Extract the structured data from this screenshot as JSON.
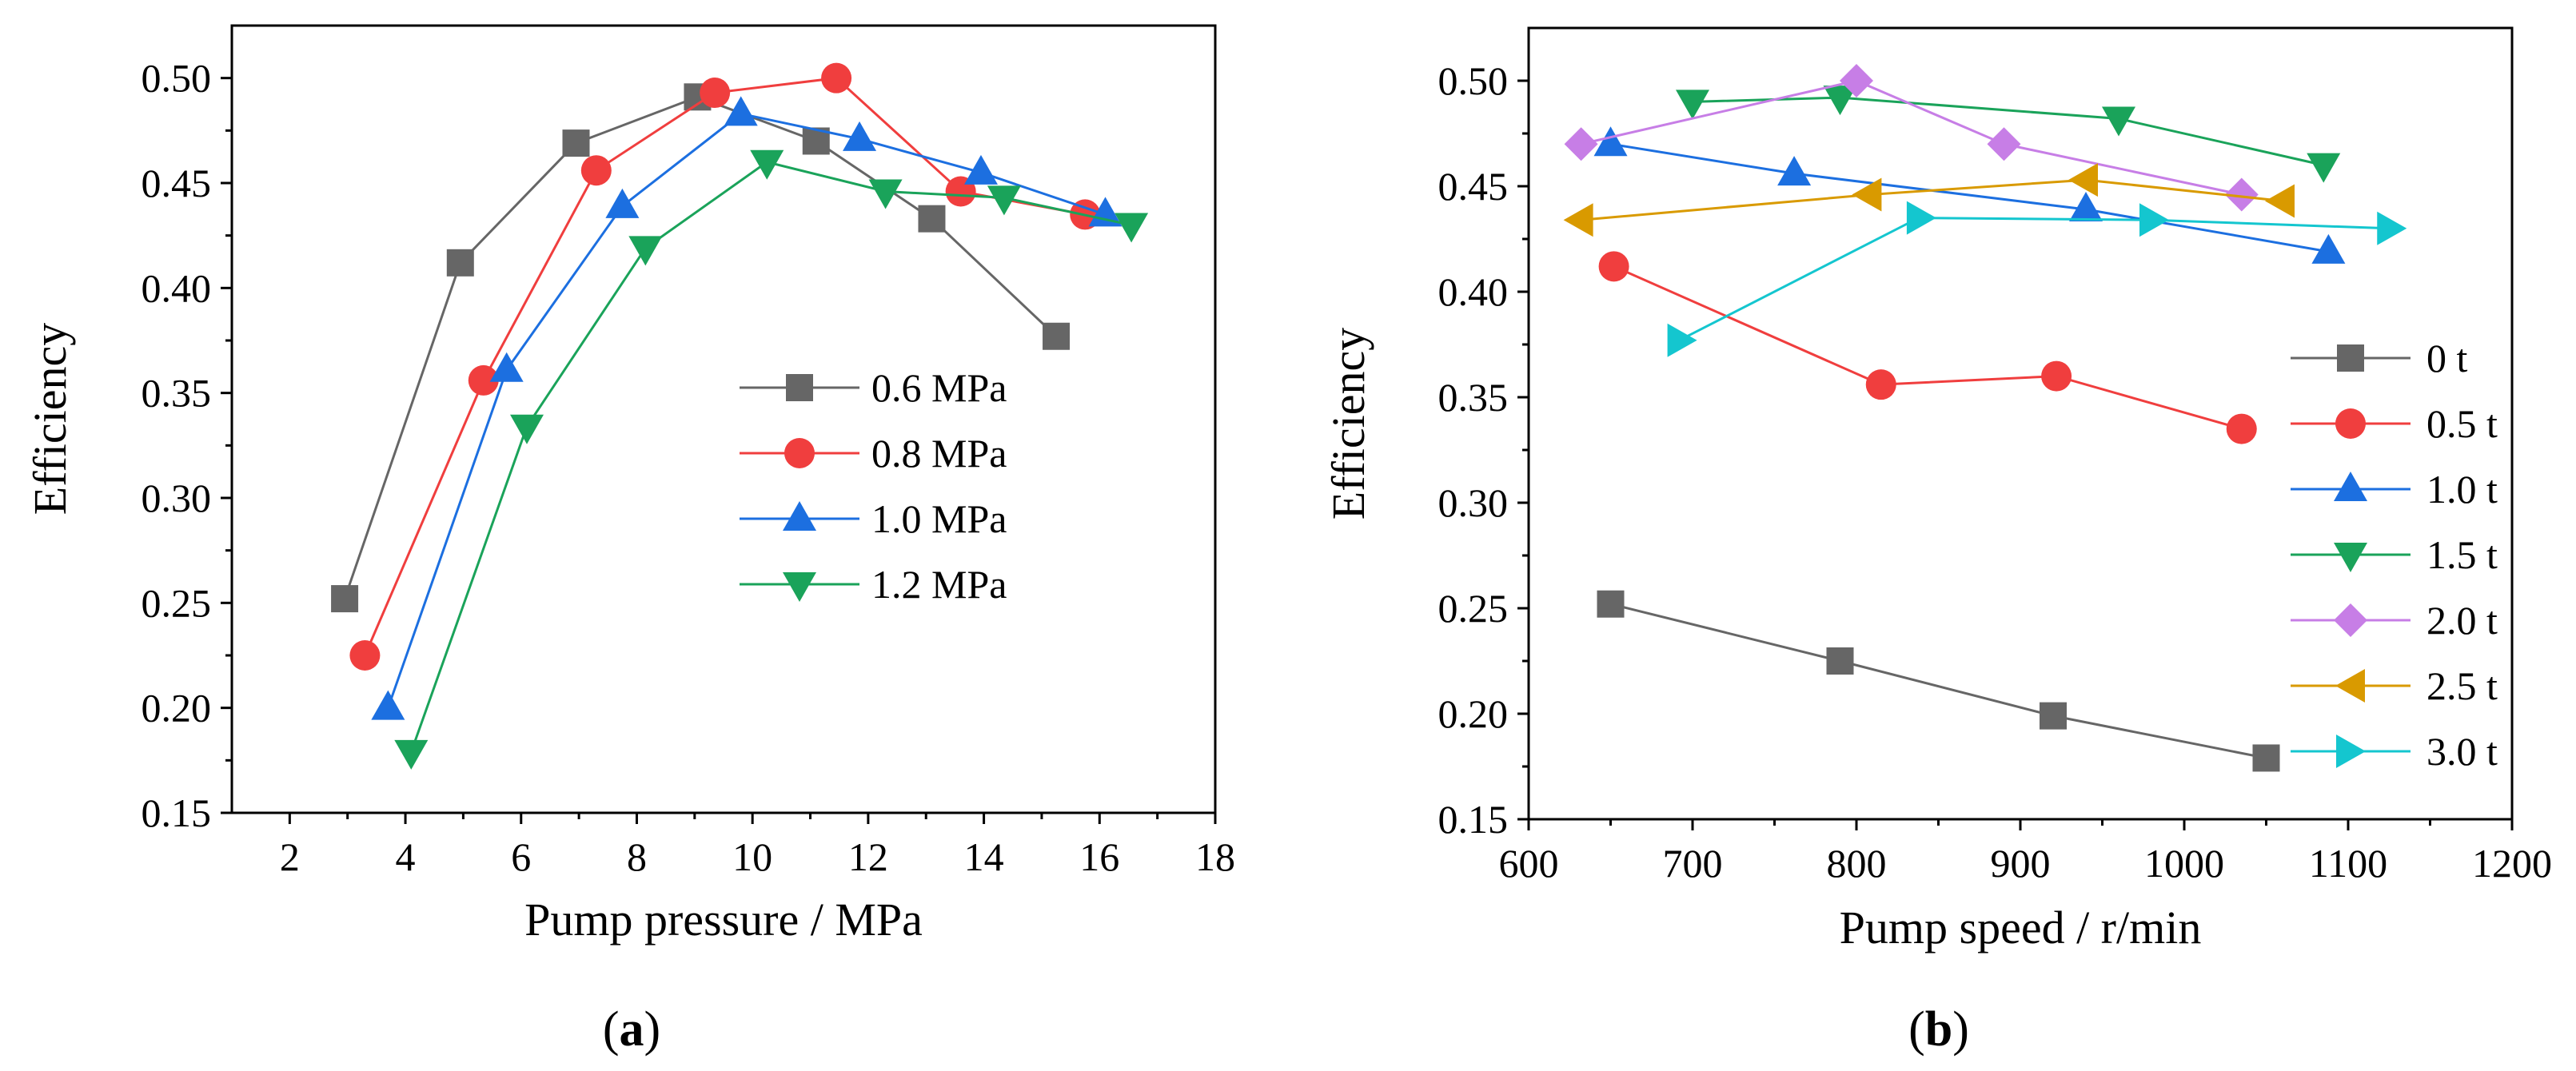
{
  "chart_data": [
    {
      "type": "line",
      "panel_label": "(a)",
      "panel_letter": "a",
      "xlabel": "Pump pressure / MPa",
      "ylabel": "Efficiency",
      "xlim": [
        1,
        18
      ],
      "ylim": [
        0.15,
        0.525
      ],
      "xticks": [
        "2",
        "4",
        "6",
        "8",
        "10",
        "12",
        "14",
        "16",
        "18"
      ],
      "yticks": [
        "0.15",
        "0.20",
        "0.25",
        "0.30",
        "0.35",
        "0.40",
        "0.45",
        "0.50"
      ],
      "legend_position": "center-right",
      "series": [
        {
          "name": "0.6 MPa",
          "marker": "square",
          "color": "#666666",
          "x": [
            2.95,
            4.95,
            6.95,
            9.05,
            11.1,
            13.1,
            15.25
          ],
          "y": [
            0.252,
            0.412,
            0.469,
            0.491,
            0.47,
            0.433,
            0.377
          ]
        },
        {
          "name": "0.8 MPa",
          "marker": "circle",
          "color": "#f03e3e",
          "x": [
            3.3,
            5.35,
            7.3,
            9.35,
            11.45,
            13.6,
            15.75
          ],
          "y": [
            0.225,
            0.356,
            0.456,
            0.493,
            0.5,
            0.446,
            0.435
          ]
        },
        {
          "name": "1.0 MPa",
          "marker": "triangle-up",
          "color": "#1c6fe0",
          "x": [
            3.7,
            5.75,
            7.75,
            9.8,
            11.85,
            13.95,
            16.1
          ],
          "y": [
            0.2,
            0.361,
            0.439,
            0.483,
            0.471,
            0.455,
            0.435
          ]
        },
        {
          "name": "1.2 MPa",
          "marker": "triangle-down",
          "color": "#1aa35a",
          "x": [
            4.1,
            6.1,
            8.15,
            10.25,
            12.3,
            14.35,
            16.55
          ],
          "y": [
            0.179,
            0.334,
            0.419,
            0.46,
            0.446,
            0.443,
            0.43
          ]
        }
      ]
    },
    {
      "type": "line",
      "panel_label": "(b)",
      "panel_letter": "b",
      "xlabel": "Pump speed / r/min",
      "ylabel": "Efficiency",
      "xlim": [
        600,
        1200
      ],
      "ylim": [
        0.15,
        0.525
      ],
      "xticks": [
        "600",
        "700",
        "800",
        "900",
        "1000",
        "1100",
        "1200"
      ],
      "yticks": [
        "0.15",
        "0.20",
        "0.25",
        "0.30",
        "0.35",
        "0.40",
        "0.45",
        "0.50"
      ],
      "legend_position": "right",
      "series": [
        {
          "name": "0 t",
          "marker": "square",
          "color": "#666666",
          "x": [
            650,
            790,
            920,
            1050
          ],
          "y": [
            0.252,
            0.225,
            0.199,
            0.179
          ]
        },
        {
          "name": "0.5 t",
          "marker": "circle",
          "color": "#f03e3e",
          "x": [
            652,
            815,
            922,
            1035
          ],
          "y": [
            0.412,
            0.356,
            0.36,
            0.335
          ]
        },
        {
          "name": "1.0 t",
          "marker": "triangle-up",
          "color": "#1c6fe0",
          "x": [
            650,
            762,
            940,
            1088
          ],
          "y": [
            0.47,
            0.456,
            0.439,
            0.419
          ]
        },
        {
          "name": "1.5 t",
          "marker": "triangle-down",
          "color": "#1aa35a",
          "x": [
            700,
            790,
            960,
            1085
          ],
          "y": [
            0.49,
            0.492,
            0.482,
            0.46
          ]
        },
        {
          "name": "2.0 t",
          "marker": "diamond",
          "color": "#c77ee6",
          "x": [
            632,
            800,
            890,
            1035
          ],
          "y": [
            0.47,
            0.5,
            0.47,
            0.446
          ]
        },
        {
          "name": "2.5 t",
          "marker": "triangle-left",
          "color": "#d99a00",
          "x": [
            632,
            808,
            940,
            1060
          ],
          "y": [
            0.434,
            0.446,
            0.453,
            0.443
          ]
        },
        {
          "name": "3.0 t",
          "marker": "triangle-right",
          "color": "#14c6cf",
          "x": [
            692,
            838,
            980,
            1125
          ],
          "y": [
            0.377,
            0.435,
            0.434,
            0.43
          ]
        }
      ]
    }
  ]
}
